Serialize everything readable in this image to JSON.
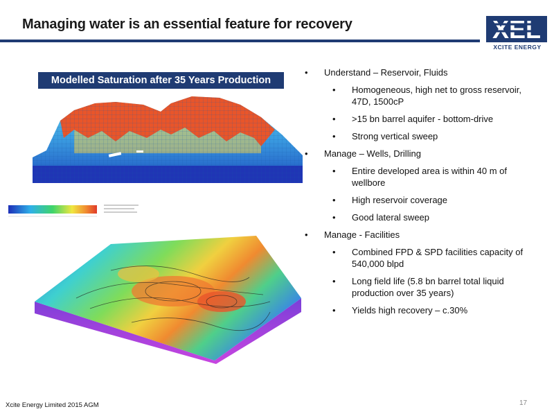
{
  "slide": {
    "title": "Managing water is an essential feature for recovery",
    "logo": {
      "mark": "XEL",
      "subtitle": "XCITE ENERGY"
    },
    "saturation_caption": "Modelled Saturation after 35 Years Production",
    "bullets": [
      {
        "text": "Understand – Reservoir, Fluids",
        "children": [
          "Homogeneous, high net to gross reservoir, 47D, 1500cP",
          ">15 bn barrel aquifer - bottom-drive",
          "Strong vertical sweep"
        ]
      },
      {
        "text": "Manage – Wells, Drilling",
        "children": [
          "Entire developed area is within 40 m of wellbore",
          "High reservoir coverage",
          "Good lateral sweep"
        ]
      },
      {
        "text": "Manage - Facilities",
        "children": [
          "Combined FPD & SPD facilities capacity of 540,000 blpd",
          "Long field life (5.8 bn barrel total liquid production over 35 years)",
          "Yields high recovery – c.30%"
        ]
      }
    ],
    "footer": "Xcite Energy Limited 2015 AGM",
    "page_number": "17"
  },
  "colors": {
    "brand_navy": "#1f3b73",
    "oil_red": "#e8552a",
    "water_blue": "#2f7fd8"
  },
  "icons": {
    "logo": "xel-logo-icon"
  }
}
